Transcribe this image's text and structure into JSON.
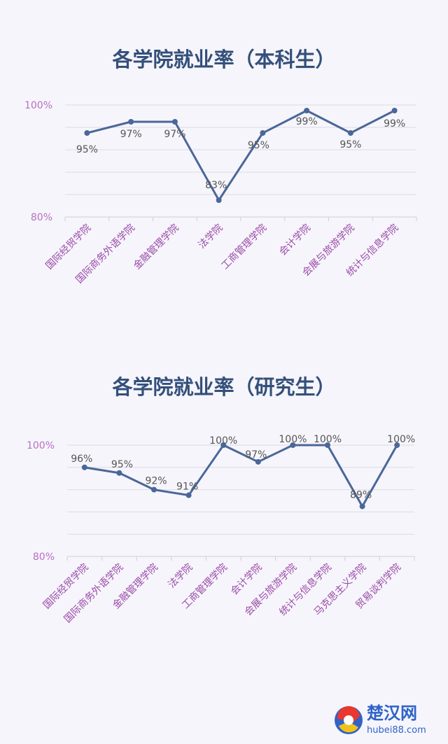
{
  "chart_data": [
    {
      "type": "line",
      "title": "各学院就业率（本科生）",
      "categories": [
        "国际经贸学院",
        "国际商务外语学院",
        "金融管理学院",
        "法学院",
        "工商管理学院",
        "会计学院",
        "会展与旅游学院",
        "统计与信息学院"
      ],
      "values": [
        95,
        97,
        97,
        83,
        95,
        99,
        95,
        99
      ],
      "data_labels": [
        "95%",
        "97%",
        "97%",
        "83%",
        "95%",
        "99%",
        "95%",
        "99%"
      ],
      "yticks": [
        "100%",
        "80%"
      ],
      "ylim": [
        80,
        100
      ],
      "grid": true,
      "color": "#4a6799"
    },
    {
      "type": "line",
      "title": "各学院就业率（研究生）",
      "categories": [
        "国际经贸学院",
        "国际商务外语学院",
        "金融管理学院",
        "法学院",
        "工商管理学院",
        "会计学院",
        "会展与旅游学院",
        "统计与信息学院",
        "马克思主义学院",
        "贸易谈判学院"
      ],
      "values": [
        96,
        95,
        92,
        91,
        100,
        97,
        100,
        100,
        89,
        100
      ],
      "data_labels": [
        "96%",
        "95%",
        "92%",
        "91%",
        "100%",
        "97%",
        "100%",
        "100%",
        "89%",
        "100%"
      ],
      "yticks": [
        "100%",
        "80%"
      ],
      "ylim": [
        80,
        100
      ],
      "grid": true,
      "color": "#4a6799"
    }
  ],
  "watermark": {
    "name": "楚汉网",
    "url": "hubei88.com",
    "logo": "globe-logo-icon"
  }
}
